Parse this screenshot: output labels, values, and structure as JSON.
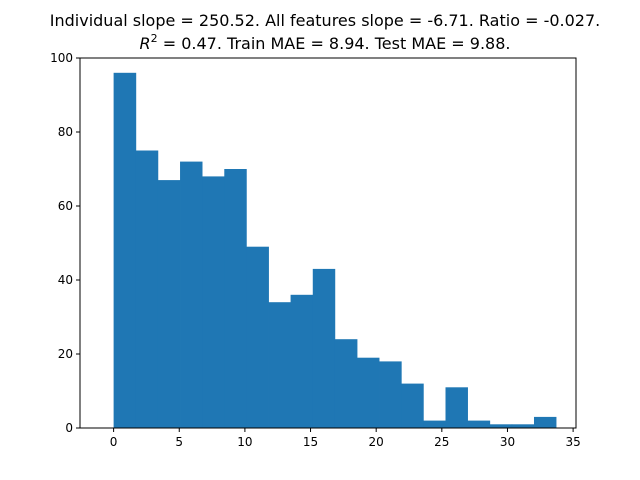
{
  "chart_data": {
    "type": "bar",
    "title_line1": "Individual slope = 250.52. All features slope = -6.71. Ratio = -0.027.",
    "title_line2_symbol": "R",
    "title_line2_exponent": "2",
    "title_line2_rest": " = 0.47. Train MAE = 8.94. Test MAE = 9.88.",
    "xlabel": "",
    "ylabel": "",
    "xlim": [
      -2.56,
      35.22
    ],
    "ylim": [
      0,
      100
    ],
    "bin_edges": [
      0.0,
      1.69,
      3.37,
      5.06,
      6.74,
      8.43,
      10.11,
      11.8,
      13.48,
      15.17,
      16.85,
      18.54,
      20.22,
      21.91,
      23.59,
      25.28,
      26.96,
      28.65,
      30.33,
      32.02,
      33.7
    ],
    "values": [
      96,
      75,
      67,
      72,
      68,
      70,
      49,
      34,
      36,
      43,
      24,
      19,
      18,
      12,
      2,
      11,
      2,
      1,
      1,
      3
    ],
    "xticks": [
      0,
      5,
      10,
      15,
      20,
      25,
      30,
      35
    ],
    "xtick_labels": [
      "0",
      "5",
      "10",
      "15",
      "20",
      "25",
      "30",
      "35"
    ],
    "yticks": [
      0,
      20,
      40,
      60,
      80,
      100
    ],
    "ytick_labels": [
      "0",
      "20",
      "40",
      "60",
      "80",
      "100"
    ],
    "bar_color": "#1f77b4",
    "grid": false,
    "legend": "none"
  }
}
